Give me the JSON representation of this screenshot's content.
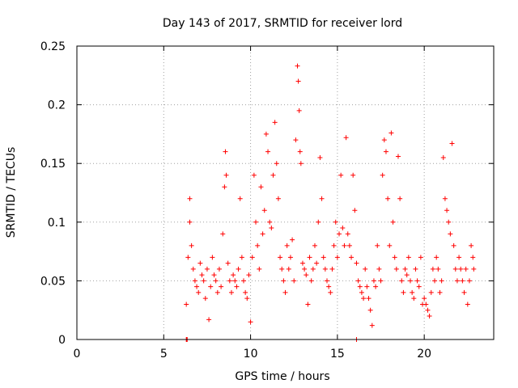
{
  "chart_data": {
    "type": "scatter",
    "title": "Day 143 of 2017, SRMTID for receiver lord",
    "xlabel": "GPS time / hours",
    "ylabel": "SRMTID / TECUs",
    "xlim": [
      0,
      24
    ],
    "ylim": [
      0,
      0.25
    ],
    "xticks": [
      0,
      5,
      10,
      15,
      20
    ],
    "xtick_labels": [
      "0",
      "5",
      "10",
      "15",
      "20"
    ],
    "yticks": [
      0,
      0.05,
      0.1,
      0.15,
      0.2,
      0.25
    ],
    "ytick_labels": [
      "0",
      "0.05",
      "0.1",
      "0.15",
      "0.2",
      "0.25"
    ],
    "grid": true,
    "marker": "+",
    "series": [
      {
        "name": "SRMTID",
        "color": "#ff0000",
        "points": [
          [
            6.3,
            0.0
          ],
          [
            6.32,
            0.0
          ],
          [
            6.35,
            0.0
          ],
          [
            16.1,
            0.0
          ],
          [
            6.3,
            0.03
          ],
          [
            6.4,
            0.07
          ],
          [
            6.5,
            0.12
          ],
          [
            6.5,
            0.1
          ],
          [
            6.6,
            0.08
          ],
          [
            6.7,
            0.06
          ],
          [
            6.8,
            0.05
          ],
          [
            6.9,
            0.045
          ],
          [
            7.0,
            0.04
          ],
          [
            7.1,
            0.065
          ],
          [
            7.2,
            0.055
          ],
          [
            7.3,
            0.05
          ],
          [
            7.4,
            0.035
          ],
          [
            7.5,
            0.06
          ],
          [
            7.6,
            0.017
          ],
          [
            7.7,
            0.045
          ],
          [
            7.8,
            0.07
          ],
          [
            7.9,
            0.055
          ],
          [
            8.0,
            0.05
          ],
          [
            8.1,
            0.04
          ],
          [
            8.2,
            0.06
          ],
          [
            8.3,
            0.045
          ],
          [
            8.4,
            0.09
          ],
          [
            8.5,
            0.13
          ],
          [
            8.55,
            0.16
          ],
          [
            8.6,
            0.14
          ],
          [
            8.7,
            0.065
          ],
          [
            8.8,
            0.05
          ],
          [
            8.9,
            0.04
          ],
          [
            9.0,
            0.055
          ],
          [
            9.1,
            0.05
          ],
          [
            9.2,
            0.045
          ],
          [
            9.3,
            0.06
          ],
          [
            9.4,
            0.12
          ],
          [
            9.5,
            0.07
          ],
          [
            9.6,
            0.05
          ],
          [
            9.7,
            0.04
          ],
          [
            9.8,
            0.035
          ],
          [
            9.9,
            0.055
          ],
          [
            10.0,
            0.015
          ],
          [
            10.1,
            0.07
          ],
          [
            10.2,
            0.14
          ],
          [
            10.3,
            0.1
          ],
          [
            10.4,
            0.08
          ],
          [
            10.5,
            0.06
          ],
          [
            10.6,
            0.13
          ],
          [
            10.7,
            0.09
          ],
          [
            10.8,
            0.11
          ],
          [
            10.9,
            0.175
          ],
          [
            11.0,
            0.16
          ],
          [
            11.1,
            0.1
          ],
          [
            11.2,
            0.095
          ],
          [
            11.3,
            0.14
          ],
          [
            11.4,
            0.185
          ],
          [
            11.5,
            0.15
          ],
          [
            11.6,
            0.12
          ],
          [
            11.7,
            0.07
          ],
          [
            11.8,
            0.06
          ],
          [
            11.9,
            0.05
          ],
          [
            12.0,
            0.04
          ],
          [
            12.1,
            0.08
          ],
          [
            12.2,
            0.06
          ],
          [
            12.3,
            0.07
          ],
          [
            12.4,
            0.085
          ],
          [
            12.5,
            0.05
          ],
          [
            12.6,
            0.17
          ],
          [
            12.7,
            0.233
          ],
          [
            12.75,
            0.22
          ],
          [
            12.8,
            0.195
          ],
          [
            12.85,
            0.16
          ],
          [
            12.9,
            0.15
          ],
          [
            13.0,
            0.065
          ],
          [
            13.1,
            0.06
          ],
          [
            13.2,
            0.055
          ],
          [
            13.3,
            0.03
          ],
          [
            13.4,
            0.07
          ],
          [
            13.5,
            0.05
          ],
          [
            13.6,
            0.06
          ],
          [
            13.7,
            0.08
          ],
          [
            13.8,
            0.065
          ],
          [
            13.9,
            0.1
          ],
          [
            14.0,
            0.155
          ],
          [
            14.1,
            0.12
          ],
          [
            14.2,
            0.07
          ],
          [
            14.3,
            0.06
          ],
          [
            14.4,
            0.05
          ],
          [
            14.5,
            0.045
          ],
          [
            14.6,
            0.04
          ],
          [
            14.7,
            0.06
          ],
          [
            14.8,
            0.08
          ],
          [
            14.9,
            0.1
          ],
          [
            15.0,
            0.07
          ],
          [
            15.1,
            0.09
          ],
          [
            15.2,
            0.14
          ],
          [
            15.3,
            0.095
          ],
          [
            15.4,
            0.08
          ],
          [
            15.5,
            0.172
          ],
          [
            15.6,
            0.09
          ],
          [
            15.7,
            0.08
          ],
          [
            15.8,
            0.07
          ],
          [
            15.9,
            0.14
          ],
          [
            16.0,
            0.11
          ],
          [
            16.1,
            0.065
          ],
          [
            16.2,
            0.05
          ],
          [
            16.3,
            0.045
          ],
          [
            16.4,
            0.04
          ],
          [
            16.5,
            0.035
          ],
          [
            16.6,
            0.06
          ],
          [
            16.7,
            0.045
          ],
          [
            16.8,
            0.035
          ],
          [
            16.9,
            0.025
          ],
          [
            17.0,
            0.012
          ],
          [
            17.1,
            0.05
          ],
          [
            17.2,
            0.045
          ],
          [
            17.3,
            0.08
          ],
          [
            17.4,
            0.06
          ],
          [
            17.5,
            0.05
          ],
          [
            17.6,
            0.14
          ],
          [
            17.7,
            0.17
          ],
          [
            17.8,
            0.16
          ],
          [
            17.9,
            0.12
          ],
          [
            18.0,
            0.08
          ],
          [
            18.1,
            0.176
          ],
          [
            18.2,
            0.1
          ],
          [
            18.3,
            0.07
          ],
          [
            18.4,
            0.06
          ],
          [
            18.5,
            0.156
          ],
          [
            18.6,
            0.12
          ],
          [
            18.7,
            0.05
          ],
          [
            18.8,
            0.04
          ],
          [
            18.9,
            0.06
          ],
          [
            19.0,
            0.055
          ],
          [
            19.1,
            0.07
          ],
          [
            19.2,
            0.05
          ],
          [
            19.3,
            0.04
          ],
          [
            19.4,
            0.035
          ],
          [
            19.5,
            0.06
          ],
          [
            19.6,
            0.05
          ],
          [
            19.7,
            0.045
          ],
          [
            19.8,
            0.07
          ],
          [
            19.9,
            0.03
          ],
          [
            20.0,
            0.035
          ],
          [
            20.1,
            0.03
          ],
          [
            20.2,
            0.025
          ],
          [
            20.3,
            0.02
          ],
          [
            20.4,
            0.04
          ],
          [
            20.5,
            0.06
          ],
          [
            20.6,
            0.05
          ],
          [
            20.7,
            0.07
          ],
          [
            20.8,
            0.06
          ],
          [
            20.9,
            0.04
          ],
          [
            21.0,
            0.05
          ],
          [
            21.1,
            0.155
          ],
          [
            21.2,
            0.12
          ],
          [
            21.3,
            0.11
          ],
          [
            21.4,
            0.1
          ],
          [
            21.5,
            0.09
          ],
          [
            21.6,
            0.167
          ],
          [
            21.7,
            0.08
          ],
          [
            21.8,
            0.06
          ],
          [
            21.9,
            0.05
          ],
          [
            22.0,
            0.07
          ],
          [
            22.1,
            0.06
          ],
          [
            22.2,
            0.05
          ],
          [
            22.3,
            0.04
          ],
          [
            22.4,
            0.06
          ],
          [
            22.5,
            0.03
          ],
          [
            22.6,
            0.05
          ],
          [
            22.7,
            0.08
          ],
          [
            22.8,
            0.07
          ],
          [
            22.85,
            0.06
          ]
        ]
      }
    ]
  }
}
